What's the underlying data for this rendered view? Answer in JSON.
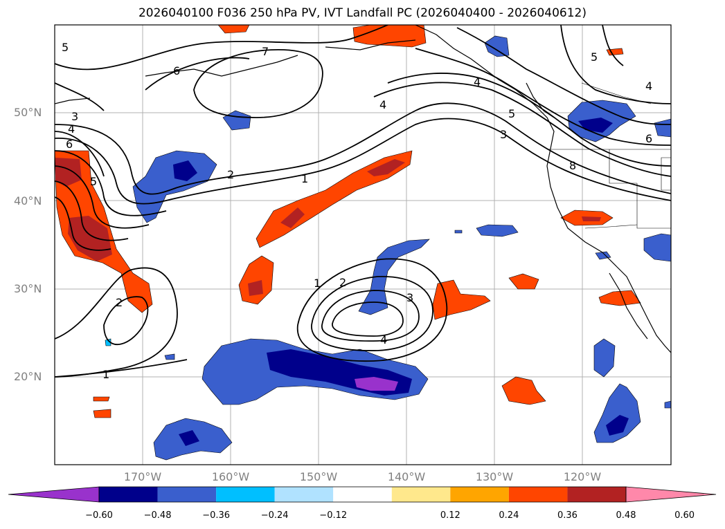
{
  "title": "2026040100 F036 250 hPa PV, IVT Landfall PC (2026040400 - 2026040612)",
  "lat_labels": [
    "50°N",
    "40°N",
    "30°N",
    "20°N"
  ],
  "lon_labels": [
    "170°W",
    "160°W",
    "150°W",
    "140°W",
    "130°W",
    "120°W"
  ],
  "contour_labels": [
    "5",
    "6",
    "7",
    "3",
    "4",
    "6",
    "5",
    "2",
    "1",
    "4",
    "4",
    "5",
    "3",
    "8",
    "6",
    "4",
    "5",
    "1",
    "2",
    "3",
    "4",
    "2",
    "1"
  ],
  "colorbar": {
    "ticks": [
      "−0.60",
      "−0.48",
      "−0.36",
      "−0.24",
      "−0.12",
      "0.12",
      "0.24",
      "0.36",
      "0.48",
      "0.60"
    ],
    "colors": [
      "#9932cc",
      "#00008b",
      "#3a5fcd",
      "#00bfff",
      "#b0e2ff",
      "#ffffff",
      "#ffe88c",
      "#ffa500",
      "#ff4500",
      "#b22222",
      "#ff88aa"
    ]
  },
  "palette": {
    "purple": "#9932cc",
    "navy": "#00008b",
    "blue": "#3a5fcd",
    "cyan": "#00bfff",
    "light_blue": "#b0e2ff",
    "yellow": "#ffe88c",
    "orange": "#ffa500",
    "red_orange": "#ff4500",
    "dark_red": "#b22222",
    "pink": "#ff88aa"
  }
}
